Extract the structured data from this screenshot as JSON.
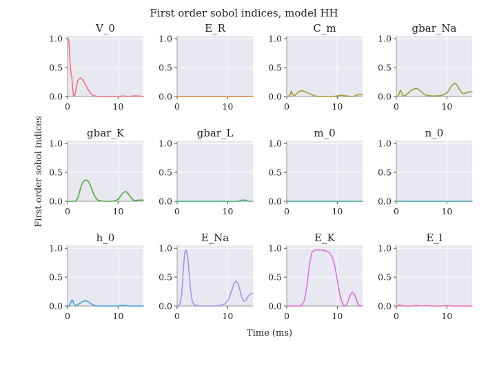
{
  "figure": {
    "title": "First order sobol indices, model HH",
    "xlabel": "Time (ms)",
    "ylabel": "First order sobol indices"
  },
  "chart_data": [
    {
      "type": "line",
      "title": "V_0",
      "color": "#f2707d",
      "xlim": [
        0,
        15
      ],
      "ylim": [
        0,
        1.05
      ],
      "x": [
        0,
        0.15,
        0.3,
        0.5,
        0.7,
        0.85,
        1.0,
        1.2,
        1.4,
        1.6,
        1.8,
        2.0,
        2.3,
        2.6,
        3.0,
        3.5,
        4.0,
        4.5,
        5.0,
        5.5,
        6.0,
        6.5,
        7,
        8,
        9,
        10,
        11,
        12,
        13,
        14,
        15
      ],
      "y": [
        1.0,
        1.0,
        0.92,
        0.6,
        0.38,
        0.34,
        0.15,
        0.0,
        0.01,
        0.08,
        0.2,
        0.27,
        0.31,
        0.32,
        0.29,
        0.22,
        0.13,
        0.06,
        0.02,
        0.01,
        0.0,
        0.0,
        0.0,
        0.0,
        0.0,
        0.0,
        0.01,
        0.0,
        0.01,
        0.01,
        0.0
      ]
    },
    {
      "type": "line",
      "title": "E_R",
      "color": "#da8133",
      "xlim": [
        0,
        15
      ],
      "ylim": [
        0,
        1.05
      ],
      "x": [
        0,
        15
      ],
      "y": [
        0,
        0
      ]
    },
    {
      "type": "line",
      "title": "C_m",
      "color": "#ad9631",
      "xlim": [
        0,
        15
      ],
      "ylim": [
        0,
        1.05
      ],
      "x": [
        0,
        0.3,
        0.6,
        0.9,
        1.2,
        1.6,
        2.0,
        2.5,
        3.0,
        3.5,
        4.0,
        4.5,
        5.0,
        6.0,
        7,
        8,
        9,
        10,
        10.5,
        11,
        11.5,
        12,
        12.5,
        13,
        13.5,
        14,
        14.5,
        15
      ],
      "y": [
        0,
        0,
        0.02,
        0.09,
        0.03,
        0.02,
        0.05,
        0.09,
        0.1,
        0.09,
        0.07,
        0.05,
        0.03,
        0.0,
        0.0,
        0.0,
        0.0,
        0.01,
        0.02,
        0.02,
        0.01,
        0.01,
        0.0,
        0.0,
        0.01,
        0.03,
        0.03,
        0.03
      ]
    },
    {
      "type": "line",
      "title": "gbar_Na",
      "color": "#8fa131",
      "xlim": [
        0,
        15
      ],
      "ylim": [
        0,
        1.05
      ],
      "x": [
        0,
        0.3,
        0.6,
        0.8,
        1.0,
        1.2,
        1.5,
        2.0,
        2.5,
        3.0,
        3.5,
        4.0,
        4.5,
        5.0,
        5.5,
        6.0,
        7.0,
        8.0,
        9.0,
        10.0,
        10.5,
        11.0,
        11.5,
        12.0,
        12.5,
        13.0,
        13.5,
        14.0,
        14.5,
        15
      ],
      "y": [
        0,
        0,
        0.06,
        0.11,
        0.08,
        0.02,
        0.01,
        0.03,
        0.07,
        0.11,
        0.13,
        0.14,
        0.12,
        0.08,
        0.04,
        0.02,
        0.01,
        0.01,
        0.02,
        0.06,
        0.12,
        0.19,
        0.23,
        0.2,
        0.12,
        0.06,
        0.05,
        0.07,
        0.08,
        0.08
      ]
    },
    {
      "type": "line",
      "title": "gbar_K",
      "color": "#4cad3c",
      "xlim": [
        0,
        15
      ],
      "ylim": [
        0,
        1.05
      ],
      "x": [
        0,
        1.0,
        1.5,
        2.0,
        2.5,
        3.0,
        3.5,
        4.0,
        4.5,
        5.0,
        5.5,
        6.0,
        7.0,
        8.0,
        9.0,
        10.0,
        10.5,
        11.0,
        11.5,
        12.0,
        12.5,
        13.0,
        13.5,
        14.0,
        14.5,
        15
      ],
      "y": [
        0,
        0,
        0.0,
        0.05,
        0.2,
        0.33,
        0.37,
        0.36,
        0.28,
        0.16,
        0.07,
        0.02,
        0.0,
        0.0,
        0.0,
        0.03,
        0.09,
        0.15,
        0.17,
        0.13,
        0.07,
        0.02,
        0.01,
        0.02,
        0.02,
        0.02
      ]
    },
    {
      "type": "line",
      "title": "gbar_L",
      "color": "#4aab7c",
      "xlim": [
        0,
        15
      ],
      "ylim": [
        0,
        1.05
      ],
      "x": [
        0,
        11,
        12,
        12.8,
        13.5,
        14,
        15
      ],
      "y": [
        0,
        0,
        0.0,
        0.02,
        0.02,
        0.0,
        0.0
      ]
    },
    {
      "type": "line",
      "title": "m_0",
      "color": "#46a79a",
      "xlim": [
        0,
        15
      ],
      "ylim": [
        0,
        1.05
      ],
      "x": [
        0,
        15
      ],
      "y": [
        0,
        0
      ]
    },
    {
      "type": "line",
      "title": "n_0",
      "color": "#47a3b2",
      "xlim": [
        0,
        15
      ],
      "ylim": [
        0,
        1.05
      ],
      "x": [
        0,
        15
      ],
      "y": [
        0,
        0
      ]
    },
    {
      "type": "line",
      "title": "h_0",
      "color": "#3ea3d7",
      "xlim": [
        0,
        15
      ],
      "ylim": [
        0,
        1.05
      ],
      "x": [
        0,
        0.3,
        0.6,
        0.8,
        1.0,
        1.2,
        1.5,
        2.0,
        2.5,
        3.0,
        3.5,
        4.0,
        4.5,
        5.0,
        5.5,
        6.0,
        7.0,
        8.0,
        9.0,
        10.0,
        10.5,
        11.0,
        11.5,
        12.0,
        13.0,
        14.0,
        15
      ],
      "y": [
        0,
        0,
        0.05,
        0.1,
        0.1,
        0.05,
        0.01,
        0.02,
        0.05,
        0.08,
        0.09,
        0.08,
        0.05,
        0.02,
        0.01,
        0.0,
        0.0,
        0.0,
        0.0,
        0.0,
        0.01,
        0.01,
        0.01,
        0.0,
        0.0,
        0.0,
        0.0
      ]
    },
    {
      "type": "line",
      "title": "E_Na",
      "color": "#a790ec",
      "xlim": [
        0,
        15
      ],
      "ylim": [
        0,
        1.05
      ],
      "x": [
        0,
        0.3,
        0.6,
        0.9,
        1.2,
        1.5,
        1.8,
        2.1,
        2.4,
        2.7,
        3.0,
        3.4,
        3.8,
        4.5,
        5.5,
        6.5,
        7.5,
        8.5,
        9.5,
        10.2,
        10.8,
        11.2,
        11.6,
        12.0,
        12.4,
        12.8,
        13.2,
        13.6,
        14.0,
        14.5,
        15
      ],
      "y": [
        0,
        0,
        0.05,
        0.2,
        0.6,
        0.93,
        0.97,
        0.85,
        0.55,
        0.25,
        0.08,
        0.02,
        0.01,
        0.0,
        0.0,
        0.0,
        0.0,
        0.01,
        0.04,
        0.12,
        0.27,
        0.38,
        0.43,
        0.4,
        0.28,
        0.15,
        0.08,
        0.1,
        0.16,
        0.21,
        0.22
      ]
    },
    {
      "type": "line",
      "title": "E_K",
      "color": "#e468e7",
      "xlim": [
        0,
        15
      ],
      "ylim": [
        0,
        1.05
      ],
      "x": [
        0,
        2.5,
        3.0,
        3.5,
        4.0,
        4.5,
        5.0,
        5.5,
        6.0,
        6.5,
        7.0,
        7.5,
        8.0,
        8.5,
        9.0,
        9.5,
        10.0,
        10.5,
        11.0,
        11.4,
        11.8,
        12.2,
        12.6,
        13.0,
        13.4,
        13.8,
        14.2,
        14.6,
        15
      ],
      "y": [
        0,
        0,
        0.02,
        0.1,
        0.35,
        0.72,
        0.93,
        0.97,
        0.97,
        0.97,
        0.97,
        0.96,
        0.95,
        0.92,
        0.85,
        0.7,
        0.45,
        0.2,
        0.05,
        0.0,
        0.02,
        0.1,
        0.2,
        0.24,
        0.2,
        0.1,
        0.02,
        0.0,
        0.0
      ]
    },
    {
      "type": "line",
      "title": "E_l",
      "color": "#f16eba",
      "xlim": [
        0,
        15
      ],
      "ylim": [
        0,
        1.05
      ],
      "x": [
        0,
        0.3,
        0.6,
        1.0,
        1.5,
        2,
        3,
        4,
        5,
        6,
        7,
        8,
        9,
        10,
        11,
        12,
        13,
        14,
        15
      ],
      "y": [
        0,
        0.01,
        0.02,
        0.01,
        0.0,
        0.0,
        0.0,
        0.01,
        0.0,
        0.01,
        0.0,
        0.0,
        0.0,
        0.01,
        0.0,
        0.0,
        0.0,
        0.0,
        0.0
      ]
    }
  ],
  "axes": {
    "yticks": [
      0.0,
      0.5,
      1.0
    ],
    "ytick_labels": [
      "0.0",
      "0.5",
      "1.0"
    ],
    "xticks": [
      0,
      10
    ],
    "xtick_labels": [
      "0",
      "10"
    ],
    "grid": true,
    "background": "#e8e8f0",
    "gridcolor": "#ffffff",
    "spinecolor": "#9a9a9a"
  }
}
